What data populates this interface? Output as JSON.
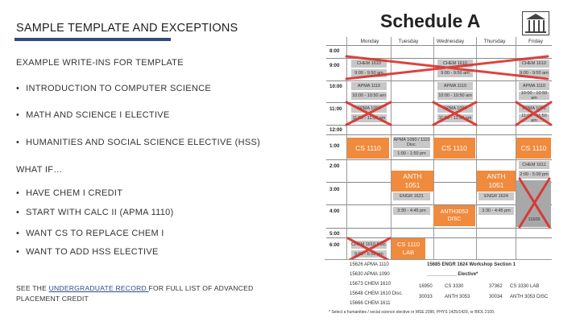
{
  "slide": {
    "title": "SAMPLE TEMPLATE AND EXCEPTIONS",
    "write_ins_heading": "EXAMPLE WRITE-INS FOR TEMPLATE",
    "write_ins": [
      "INTRODUCTION TO COMPUTER SCIENCE",
      "MATH AND SCIENCE I ELECTIVE",
      "HUMANITIES AND SOCIAL SCIENCE ELECTIVE (HSS)"
    ],
    "what_if_heading": "WHAT IF…",
    "what_if": [
      "HAVE CHEM I CREDIT",
      "START WITH CALC II (APMA 1110)",
      "WANT CS TO REPLACE CHEM I",
      "WANT TO ADD HSS ELECTIVE"
    ],
    "footnote_pre": "SEE THE ",
    "footnote_link": "UNDERGRADUATE RECORD ",
    "footnote_post": "FOR FULL LIST OF ADVANCED",
    "footnote_line2": "PLACEMENT CREDIT"
  },
  "schedule": {
    "header": "Schedule A",
    "days": [
      "Monday",
      "Tuesday",
      "Wednesday",
      "Thursday",
      "Friday"
    ],
    "times": [
      "8:00",
      "9:00",
      "10:00",
      "11:00",
      "12:00",
      "1:00",
      "2:00",
      "3:00",
      "4:00",
      "5:00",
      "6:00"
    ],
    "blocks": {
      "chem_mon": "CHEM 1610",
      "chem_mon_time": "9:00 - 9:50 am",
      "chem_wed": "CHEM 1610",
      "chem_wed_time": "9:00 - 9:50 am",
      "chem_fri": "CHEM 1610",
      "chem_fri_time": "9:00 - 9:50 am",
      "apma_mon": "APMA 1110",
      "apma_mon_time": "10:00 - 10:50 am",
      "apma_wed": "APMA 1110",
      "apma_wed_time": "10:00 - 10:50 am",
      "apma_fri": "APMA 1110",
      "apma_fri_time": "10:00 - 10:50 am",
      "apma_b_mon": "APMA 1090",
      "apma_b_mon_time": "11:00 - 11:50 am",
      "apma_b_wed": "APMA 1090",
      "apma_b_wed_time": "11:00 - 11:50 am",
      "apma_b_fri": "APMA 1090",
      "apma_b_fri_time": "11:00 - 11:50 am",
      "apma_disc_tue": "APMA 1090 / 1110 Disc.",
      "apma_disc_time": "1:00 - 1:50 pm",
      "chem_fri_pm": "CHEM 1611",
      "chem_fri_pm_time": "2:00 - 5:00 pm",
      "engr_tue": "ENGR 1621",
      "engr_tue_time": "3:30 - 4:45 pm",
      "engr_thu": "ENGR 1624",
      "engr_thu_time": "3:30 - 4:45 pm",
      "chem_fri_code": "11609",
      "chem_mon_eve": "CHEM 1610 Disc.",
      "chem_mon_eve_time": "6:00 - 6:50 pm"
    },
    "write_ins": {
      "cs_mon": "CS 1110",
      "cs_wed": "CS 1110",
      "cs_fri": "CS 1110",
      "anth_tue_l1": "ANTH",
      "anth_tue_l2": "1051",
      "anth_thu_l1": "ANTH",
      "anth_thu_l2": "1051",
      "anth_disc_l1": "ANTH3053",
      "anth_disc_l2": "DISC",
      "cs_lab_l1": "CS 1110",
      "cs_lab_l2": "LAB"
    },
    "bottom": {
      "row1_left": "15626 APMA 1110",
      "row1_right": "15685 ENGR 1624 Workshop Section 1",
      "row2_left": "15630 APMA 1090",
      "row2_right": "___________ Elective*",
      "row3_left": "15673 CHEM 1610",
      "row4_left": "15648 CHEM 1610 Disc.",
      "row5_left": "15666 CHEM 1611",
      "code1": "16950",
      "course1": "CS 3330",
      "code2": "37362",
      "course2": "CS 3330 LAB",
      "code3": "30033",
      "course3": "ANTH 3053",
      "code4": "30034",
      "course4": "ANTH 3053 DISC",
      "footer": "* Select a humanities / social science elective or MSE 2090, PHYS 1425/1429, or BIOL 2100."
    }
  },
  "colors": {
    "accent_rule": "#2f4b7c",
    "write_in_orange": "#f08a3c",
    "cross_red": "#d9302a",
    "cell_gray": "#c8c8c8"
  }
}
